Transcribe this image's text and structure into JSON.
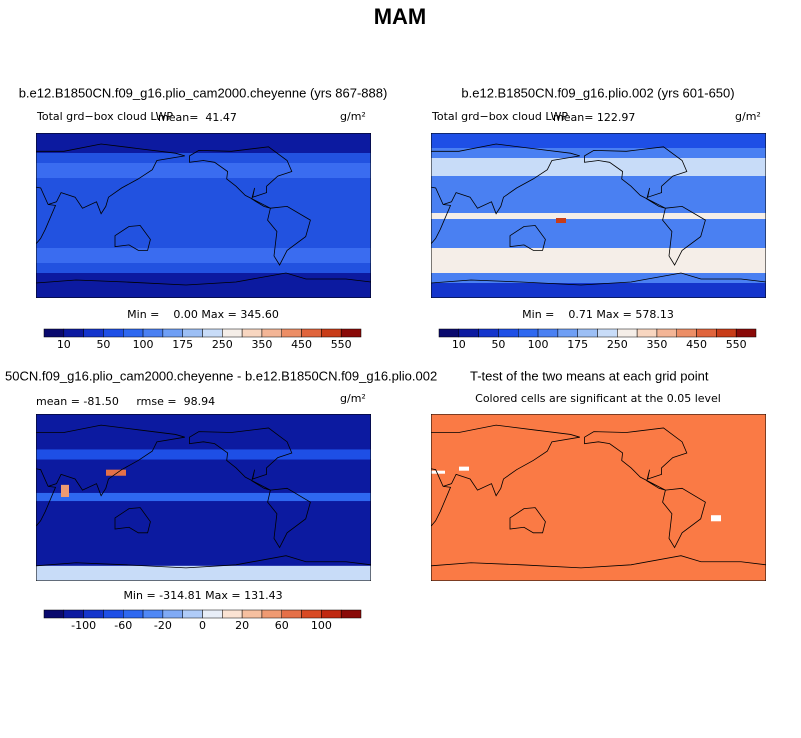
{
  "title": "MAM",
  "panels": [
    {
      "title": "b.e12.B1850CN.f09_g16.plio_cam2000.cheyenne (yrs 867-888)",
      "field_label": "Total grd−box cloud LWP",
      "stats": "mean=  41.47",
      "units": "g/m²",
      "range": "Min =    0.00 Max = 345.60",
      "colorbar": {
        "colors": [
          "#0a0a6e",
          "#0c1aa0",
          "#1435cc",
          "#1e4fe6",
          "#2e68f0",
          "#4a80f2",
          "#6f9ff5",
          "#9cbff5",
          "#c8dcf8",
          "#f5eee8",
          "#f8d6c0",
          "#f3b596",
          "#ec8e66",
          "#e0643c",
          "#c83c18",
          "#8a0a08"
        ],
        "labels": [
          10,
          50,
          100,
          175,
          250,
          350,
          450,
          550
        ]
      }
    },
    {
      "title": "b.e12.B1850CN.f09_g16.plio.002 (yrs 601-650)",
      "field_label": "Total grd−box cloud LWP",
      "stats": "mean= 122.97",
      "units": "g/m²",
      "range": "Min =    0.71 Max = 578.13",
      "colorbar": {
        "colors": [
          "#0a0a6e",
          "#0c1aa0",
          "#1435cc",
          "#1e4fe6",
          "#2e68f0",
          "#4a80f2",
          "#6f9ff5",
          "#9cbff5",
          "#c8dcf8",
          "#f5eee8",
          "#f8d6c0",
          "#f3b596",
          "#ec8e66",
          "#e0643c",
          "#c83c18",
          "#8a0a08"
        ],
        "labels": [
          10,
          50,
          100,
          175,
          250,
          350,
          450,
          550
        ]
      }
    },
    {
      "title": "50CN.f09_g16.plio_cam2000.cheyenne - b.e12.B1850CN.f09_g16.plio.002",
      "stats": "mean = -81.50     rmse =  98.94",
      "units": "g/m²",
      "range": "Min = -314.81 Max = 131.43",
      "colorbar": {
        "colors": [
          "#0a0a6e",
          "#0c1aa0",
          "#1435cc",
          "#1e4fe6",
          "#2e68f0",
          "#5088f5",
          "#80aaf5",
          "#b0ccf8",
          "#e8eef8",
          "#fbe3d3",
          "#f6c0a0",
          "#ef9a72",
          "#e57048",
          "#d84a24",
          "#c02810",
          "#8a0a08"
        ],
        "labels": [
          -100,
          -60,
          -20,
          0,
          20,
          60,
          100
        ]
      }
    },
    {
      "title": "T-test of the two means at each grid point",
      "stats": "Colored cells are significant at the 0.05 level"
    }
  ]
}
